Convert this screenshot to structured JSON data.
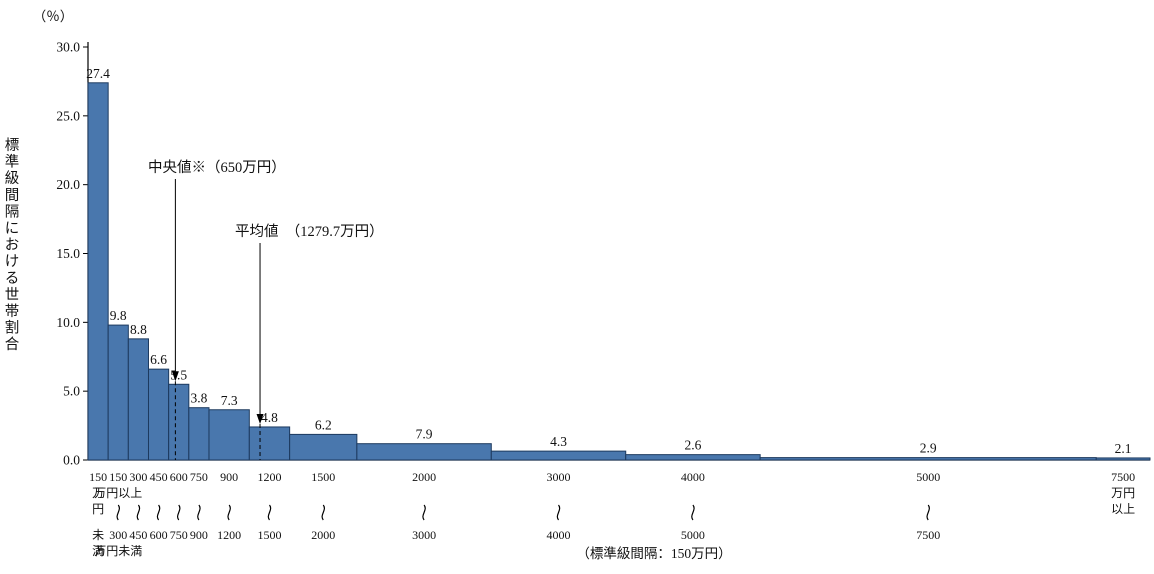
{
  "chart_data": {
    "type": "bar",
    "title": "",
    "y_unit": "（％）",
    "ylabel": "標準級間隔における世帯割合",
    "xlabel": "",
    "ylim": [
      0,
      30
    ],
    "yticks": [
      "0.0",
      "5.0",
      "10.0",
      "15.0",
      "20.0",
      "25.0",
      "30.0"
    ],
    "footnote": "（標準級間隔：150万円）",
    "bar_fill": "#4977ad",
    "bar_stroke": "#1d3a5f",
    "axis_color": "#000000",
    "standard_interval": 150,
    "bins": [
      {
        "range": "150万円未満",
        "from": 0,
        "to": 150,
        "share": 27.4,
        "tick_lines": [
          {
            "t": "150",
            "r": 0
          },
          {
            "t": "万",
            "r": 1
          },
          {
            "t": "円",
            "r": 2
          },
          {
            "t": "未",
            "r": 3
          },
          {
            "t": "満",
            "r": 4
          }
        ]
      },
      {
        "range": "150万円以上300万円未満",
        "from": 150,
        "to": 300,
        "share": 9.8,
        "tick_lines": [
          {
            "t": "150",
            "r": 0
          },
          {
            "t": "万円以上",
            "r": 1
          },
          {
            "t": "〜",
            "r": 2
          },
          {
            "t": "300",
            "r": 3
          },
          {
            "t": "万円未満",
            "r": 4
          }
        ]
      },
      {
        "range": "300〜450",
        "from": 300,
        "to": 450,
        "share": 8.8,
        "tick_lines": [
          {
            "t": "300",
            "r": 0
          },
          {
            "t": "〜",
            "r": 2
          },
          {
            "t": "450",
            "r": 3
          }
        ]
      },
      {
        "range": "450〜600",
        "from": 450,
        "to": 600,
        "share": 6.6,
        "tick_lines": [
          {
            "t": "450",
            "r": 0
          },
          {
            "t": "〜",
            "r": 2
          },
          {
            "t": "600",
            "r": 3
          }
        ]
      },
      {
        "range": "600〜750",
        "from": 600,
        "to": 750,
        "share": 5.5,
        "tick_lines": [
          {
            "t": "600",
            "r": 0
          },
          {
            "t": "〜",
            "r": 2
          },
          {
            "t": "750",
            "r": 3
          }
        ]
      },
      {
        "range": "750〜900",
        "from": 750,
        "to": 900,
        "share": 3.8,
        "tick_lines": [
          {
            "t": "750",
            "r": 0
          },
          {
            "t": "〜",
            "r": 2
          },
          {
            "t": "900",
            "r": 3
          }
        ]
      },
      {
        "range": "900〜1200",
        "from": 900,
        "to": 1200,
        "share": 7.3,
        "tick_lines": [
          {
            "t": "900",
            "r": 0
          },
          {
            "t": "〜",
            "r": 2
          },
          {
            "t": "1200",
            "r": 3
          }
        ]
      },
      {
        "range": "1200〜1500",
        "from": 1200,
        "to": 1500,
        "share": 4.8,
        "tick_lines": [
          {
            "t": "1200",
            "r": 0
          },
          {
            "t": "〜",
            "r": 2
          },
          {
            "t": "1500",
            "r": 3
          }
        ]
      },
      {
        "range": "1500〜2000",
        "from": 1500,
        "to": 2000,
        "share": 6.2,
        "tick_lines": [
          {
            "t": "1500",
            "r": 0
          },
          {
            "t": "〜",
            "r": 2
          },
          {
            "t": "2000",
            "r": 3
          }
        ]
      },
      {
        "range": "2000〜3000",
        "from": 2000,
        "to": 3000,
        "share": 7.9,
        "tick_lines": [
          {
            "t": "2000",
            "r": 0
          },
          {
            "t": "〜",
            "r": 2
          },
          {
            "t": "3000",
            "r": 3
          }
        ]
      },
      {
        "range": "3000〜4000",
        "from": 3000,
        "to": 4000,
        "share": 4.3,
        "tick_lines": [
          {
            "t": "3000",
            "r": 0
          },
          {
            "t": "〜",
            "r": 2
          },
          {
            "t": "4000",
            "r": 3
          }
        ]
      },
      {
        "range": "4000〜5000",
        "from": 4000,
        "to": 5000,
        "share": 2.6,
        "tick_lines": [
          {
            "t": "4000",
            "r": 0
          },
          {
            "t": "〜",
            "r": 2
          },
          {
            "t": "5000",
            "r": 3
          }
        ]
      },
      {
        "range": "5000〜7500",
        "from": 5000,
        "to": 7500,
        "share": 2.9,
        "tick_lines": [
          {
            "t": "5000",
            "r": 0
          },
          {
            "t": "〜",
            "r": 2
          },
          {
            "t": "7500",
            "r": 3
          }
        ]
      },
      {
        "range": "7500万円以上",
        "from": 7500,
        "to": null,
        "share": 2.1,
        "open_ended": true,
        "tick_lines": [
          {
            "t": "7500",
            "r": 0
          },
          {
            "t": "万円",
            "r": 1
          },
          {
            "t": "以上",
            "r": 2
          }
        ]
      }
    ],
    "annotations": [
      {
        "name": "median",
        "label": "中央値※（650万円）",
        "x_value": 650
      },
      {
        "name": "mean",
        "label": "平均値　（1279.7万円）",
        "x_value": 1279.7
      }
    ]
  }
}
